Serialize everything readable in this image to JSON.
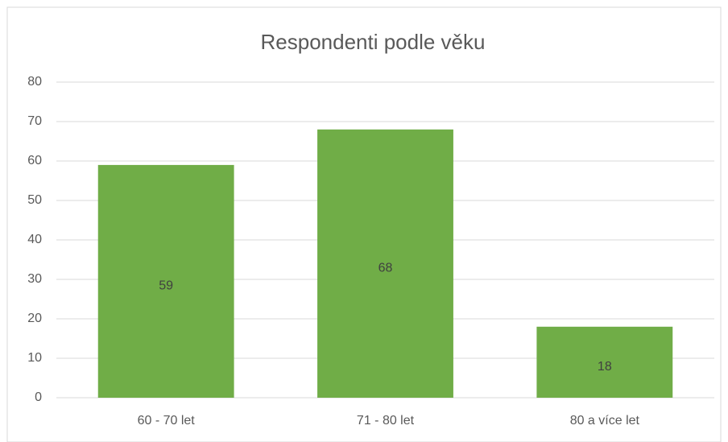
{
  "chart_data": {
    "type": "bar",
    "title": "Respondenti podle věku",
    "categories": [
      "60 - 70 let",
      "71 - 80 let",
      "80 a více let"
    ],
    "values": [
      59,
      68,
      18
    ],
    "color": "#70ad47",
    "ylim": [
      0,
      80
    ],
    "yticks": [
      0,
      10,
      20,
      30,
      40,
      50,
      60,
      70,
      80
    ],
    "grid": true
  }
}
